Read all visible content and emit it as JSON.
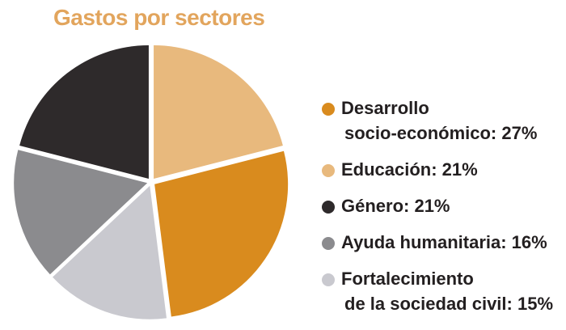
{
  "chart_data": {
    "type": "pie",
    "title": "Gastos por sectores",
    "slices": [
      {
        "lines": [
          "Desarrollo",
          "socio-económico: 27%"
        ],
        "value": 27,
        "color": "#d98b1e"
      },
      {
        "lines": [
          "Educación: 21%"
        ],
        "value": 21,
        "color": "#e8b97d"
      },
      {
        "lines": [
          "Género: 21%"
        ],
        "value": 21,
        "color": "#2e2a2b"
      },
      {
        "lines": [
          "Ayuda humanitaria: 16%"
        ],
        "value": 16,
        "color": "#8b8b8e"
      },
      {
        "lines": [
          "Fortalecimiento",
          "de la sociedad civil: 15%"
        ],
        "value": 15,
        "color": "#c9c9cf"
      }
    ],
    "legend_position": "right"
  }
}
